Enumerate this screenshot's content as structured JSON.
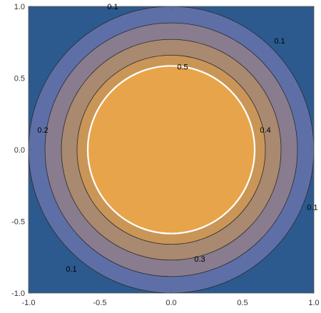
{
  "chart_data": {
    "type": "contour",
    "title": "",
    "xlabel": "",
    "ylabel": "",
    "xlim": [
      -1.0,
      1.0
    ],
    "ylim": [
      -1.0,
      1.0
    ],
    "x_ticks": [
      "-1.0",
      "-0.5",
      "0.0",
      "0.5",
      "1.0"
    ],
    "y_ticks": [
      "1.0",
      "0.5",
      "0.0",
      "-0.5",
      "-1.0"
    ],
    "contour_levels": [
      0.1,
      0.2,
      0.3,
      0.4,
      0.5
    ],
    "contour_radii": [
      1.0,
      0.885,
      0.77,
      0.66,
      0.585
    ],
    "region_colors": [
      "#2c5a8e",
      "#5e6fa8",
      "#887c8e",
      "#a9896f",
      "#c99658",
      "#e8a44a"
    ],
    "highlight_contour": {
      "level": 0.5,
      "color": "#ffffff"
    },
    "contour_labels": [
      {
        "text": "0.1",
        "x": -0.41,
        "y": 1.0
      },
      {
        "text": "0.1",
        "x": 0.76,
        "y": 0.76
      },
      {
        "text": "0.5",
        "x": 0.08,
        "y": 0.58
      },
      {
        "text": "0.2",
        "x": -0.9,
        "y": 0.14
      },
      {
        "text": "0.4",
        "x": 0.66,
        "y": 0.14
      },
      {
        "text": "0.1",
        "x": 0.99,
        "y": -0.4
      },
      {
        "text": "0.3",
        "x": 0.2,
        "y": -0.76
      },
      {
        "text": "0.1",
        "x": -0.7,
        "y": -0.83
      }
    ]
  }
}
